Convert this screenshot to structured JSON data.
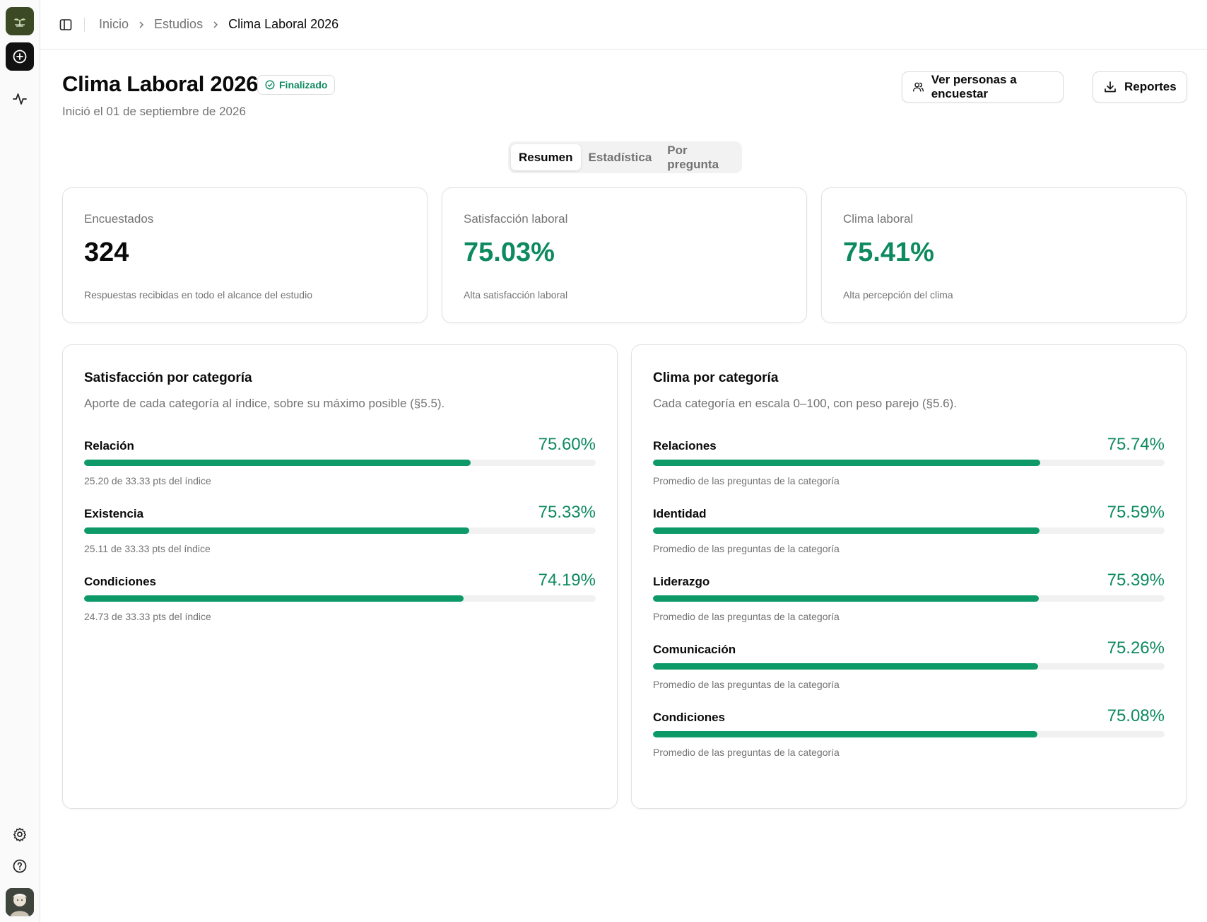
{
  "breadcrumb": {
    "home": "Inicio",
    "section": "Estudios",
    "current": "Clima Laboral 2026"
  },
  "header": {
    "title": "Clima Laboral 2026",
    "status": "Finalizado",
    "started": "Inició el 01 de septiembre de 2026",
    "people_button": "Ver personas a encuestar",
    "reports_button": "Reportes"
  },
  "tabs": [
    {
      "label": "Resumen",
      "active": true
    },
    {
      "label": "Estadística",
      "active": false
    },
    {
      "label": "Por pregunta",
      "active": false
    }
  ],
  "stats": [
    {
      "label": "Encuestados",
      "value": "324",
      "description": "Respuestas recibidas en todo el alcance del estudio"
    },
    {
      "label": "Satisfacción laboral",
      "value": "75.03%",
      "description": "Alta satisfacción laboral"
    },
    {
      "label": "Clima laboral",
      "value": "75.41%",
      "description": "Alta percepción del clima"
    }
  ],
  "satisfaction": {
    "title": "Satisfacción por categoría",
    "subtitle": "Aporte de cada categoría al índice, sobre su máximo posible (§5.5).",
    "rows": [
      {
        "name": "Relación",
        "pct": "75.60%",
        "value": 75.6,
        "note": "25.20 de 33.33 pts del índice"
      },
      {
        "name": "Existencia",
        "pct": "75.33%",
        "value": 75.33,
        "note": "25.11 de 33.33 pts del índice"
      },
      {
        "name": "Condiciones",
        "pct": "74.19%",
        "value": 74.19,
        "note": "24.73 de 33.33 pts del índice"
      }
    ]
  },
  "climate": {
    "title": "Clima por categoría",
    "subtitle": "Cada categoría en escala 0–100, con peso parejo (§5.6).",
    "rows": [
      {
        "name": "Relaciones",
        "pct": "75.74%",
        "value": 75.74,
        "note": "Promedio de las preguntas de la categoría"
      },
      {
        "name": "Identidad",
        "pct": "75.59%",
        "value": 75.59,
        "note": "Promedio de las preguntas de la categoría"
      },
      {
        "name": "Liderazgo",
        "pct": "75.39%",
        "value": 75.39,
        "note": "Promedio de las preguntas de la categoría"
      },
      {
        "name": "Comunicación",
        "pct": "75.26%",
        "value": 75.26,
        "note": "Promedio de las preguntas de la categoría"
      },
      {
        "name": "Condiciones",
        "pct": "75.08%",
        "value": 75.08,
        "note": "Promedio de las preguntas de la categoría"
      }
    ]
  },
  "colors": {
    "accent": "#0e8a5f",
    "bar": "#0e9a68",
    "track": "#f1f1f1"
  }
}
